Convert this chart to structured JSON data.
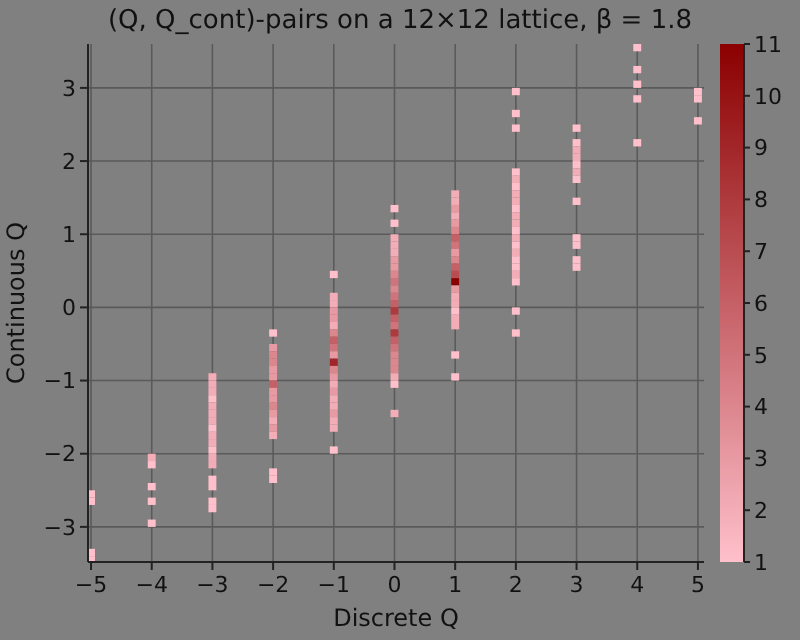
{
  "chart_data": {
    "type": "scatter",
    "title": "(Q, Q_cont)-pairs on a 12×12 lattice, β = 1.8",
    "xlabel": "Discrete Q",
    "ylabel": "Continuous Q",
    "x": [
      -5,
      -5,
      -5,
      -5,
      -4,
      -4,
      -4,
      -4,
      -4,
      -3,
      -3,
      -3,
      -3,
      -3,
      -3,
      -3,
      -3,
      -3,
      -3,
      -3,
      -3,
      -3,
      -3,
      -3,
      -3,
      -3,
      -2,
      -2,
      -2,
      -2,
      -2,
      -2,
      -2,
      -2,
      -2,
      -2,
      -2,
      -2,
      -2,
      -2,
      -2,
      -2,
      -1,
      -1,
      -1,
      -1,
      -1,
      -1,
      -1,
      -1,
      -1,
      -1,
      -1,
      -1,
      -1,
      -1,
      -1,
      -1,
      -1,
      -1,
      -1,
      -1,
      -1,
      0,
      0,
      0,
      0,
      0,
      0,
      0,
      0,
      0,
      0,
      0,
      0,
      0,
      0,
      0,
      0,
      0,
      0,
      0,
      0,
      0,
      0,
      0,
      0,
      1,
      1,
      1,
      1,
      1,
      1,
      1,
      1,
      1,
      1,
      1,
      1,
      1,
      1,
      1,
      1,
      1,
      1,
      1,
      1,
      1,
      2,
      2,
      2,
      2,
      2,
      2,
      2,
      2,
      2,
      2,
      2,
      2,
      2,
      2,
      2,
      2,
      2,
      2,
      2,
      2,
      2,
      3,
      3,
      3,
      3,
      3,
      3,
      3,
      3,
      3,
      3,
      3,
      3,
      4,
      4,
      4,
      4,
      4,
      5,
      5,
      5
    ],
    "values": [
      -2.55,
      -2.65,
      -3.35,
      -3.45,
      -2.05,
      -2.15,
      -2.45,
      -2.65,
      -2.95,
      -0.95,
      -1.05,
      -1.15,
      -1.25,
      -1.35,
      -1.45,
      -1.55,
      -1.65,
      -1.75,
      -1.85,
      -1.95,
      -2.05,
      -2.15,
      -2.35,
      -2.45,
      -2.65,
      -2.75,
      -0.35,
      -0.55,
      -0.65,
      -0.75,
      -0.85,
      -0.95,
      -1.05,
      -1.15,
      -1.25,
      -1.35,
      -1.45,
      -1.55,
      -1.65,
      -1.75,
      -2.25,
      -2.35,
      0.45,
      0.15,
      0.05,
      -0.05,
      -0.15,
      -0.25,
      -0.35,
      -0.45,
      -0.55,
      -0.65,
      -0.75,
      -0.85,
      -0.95,
      -1.05,
      -1.15,
      -1.25,
      -1.35,
      -1.45,
      -1.55,
      -1.65,
      -1.95,
      1.35,
      1.15,
      0.95,
      0.85,
      0.75,
      0.65,
      0.55,
      0.45,
      0.35,
      0.25,
      0.15,
      0.05,
      -0.05,
      -0.15,
      -0.25,
      -0.35,
      -0.45,
      -0.55,
      -0.65,
      -0.75,
      -0.85,
      -0.95,
      -1.05,
      -1.45,
      1.55,
      1.45,
      1.35,
      1.25,
      1.15,
      1.05,
      0.95,
      0.85,
      0.75,
      0.65,
      0.55,
      0.45,
      0.35,
      0.25,
      0.15,
      0.05,
      -0.05,
      -0.15,
      -0.25,
      -0.65,
      -0.95,
      2.95,
      2.65,
      2.45,
      1.85,
      1.75,
      1.65,
      1.55,
      1.45,
      1.35,
      1.25,
      1.15,
      1.05,
      0.95,
      0.85,
      0.75,
      0.65,
      0.55,
      0.45,
      0.35,
      -0.05,
      -0.35,
      2.45,
      2.25,
      2.15,
      2.05,
      1.95,
      1.85,
      1.75,
      1.45,
      0.95,
      0.85,
      0.65,
      0.55,
      3.55,
      3.25,
      3.05,
      2.85,
      2.25,
      2.95,
      2.85,
      2.55
    ],
    "cvalues": [
      1,
      1,
      1,
      1,
      2,
      1,
      1,
      1,
      1,
      2,
      2,
      2,
      1,
      2,
      2,
      2,
      1,
      2,
      2,
      1,
      2,
      2,
      1,
      1,
      1,
      1,
      1,
      3,
      4,
      4,
      3,
      3,
      6,
      3,
      3,
      4,
      3,
      2,
      3,
      2,
      1,
      1,
      1,
      2,
      2,
      3,
      3,
      2,
      4,
      6,
      5,
      3,
      9,
      4,
      3,
      2,
      3,
      2,
      2,
      3,
      2,
      2,
      1,
      1,
      1,
      2,
      2,
      2,
      3,
      3,
      4,
      5,
      4,
      5,
      6,
      8,
      6,
      5,
      8,
      6,
      5,
      4,
      4,
      4,
      2,
      1,
      2,
      2,
      2,
      3,
      2,
      3,
      4,
      6,
      5,
      3,
      4,
      6,
      7,
      11,
      3,
      2,
      2,
      1,
      2,
      2,
      1,
      1,
      1,
      1,
      1,
      1,
      2,
      1,
      2,
      2,
      1,
      2,
      2,
      1,
      2,
      1,
      2,
      1,
      1,
      2,
      1,
      1,
      1,
      1,
      1,
      2,
      2,
      1,
      2,
      1,
      1,
      1,
      1,
      1,
      1,
      1,
      1,
      1,
      1,
      1,
      1,
      1,
      1
    ],
    "marker": "square",
    "grid": true,
    "xlim": [
      -5.05,
      5.1
    ],
    "xticks": [
      -5,
      -4,
      -3,
      -2,
      -1,
      0,
      1,
      2,
      3,
      4,
      5
    ],
    "ylim": [
      -3.48,
      3.6
    ],
    "yticks": [
      -3,
      -2,
      -1,
      0,
      1,
      2,
      3
    ],
    "clim": [
      1,
      11
    ],
    "cticks": [
      1,
      2,
      3,
      4,
      5,
      6,
      7,
      8,
      9,
      10,
      11
    ]
  }
}
